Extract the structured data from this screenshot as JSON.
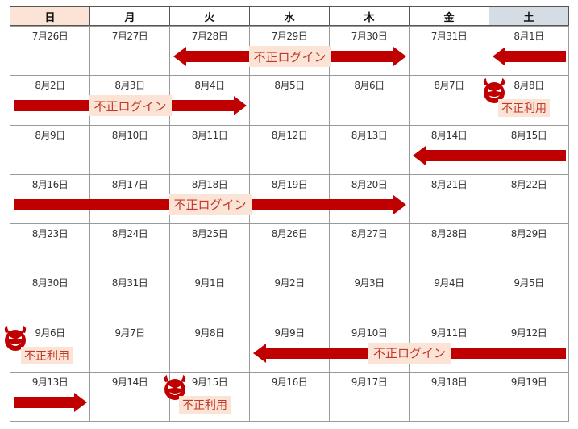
{
  "weekdays": [
    "日",
    "月",
    "火",
    "水",
    "木",
    "金",
    "土"
  ],
  "weekday_colors": [
    "#fbe3d6",
    "#ffffff",
    "#ffffff",
    "#ffffff",
    "#ffffff",
    "#ffffff",
    "#d6dce4"
  ],
  "weeks": [
    [
      "7月26日",
      "7月27日",
      "7月28日",
      "7月29日",
      "7月30日",
      "7月31日",
      "8月1日"
    ],
    [
      "8月2日",
      "8月3日",
      "8月4日",
      "8月5日",
      "8月6日",
      "8月7日",
      "8月8日"
    ],
    [
      "8月9日",
      "8月10日",
      "8月11日",
      "8月12日",
      "8月13日",
      "8月14日",
      "8月15日"
    ],
    [
      "8月16日",
      "8月17日",
      "8月18日",
      "8月19日",
      "8月20日",
      "8月21日",
      "8月22日"
    ],
    [
      "8月23日",
      "8月24日",
      "8月25日",
      "8月26日",
      "8月27日",
      "8月28日",
      "8月29日"
    ],
    [
      "8月30日",
      "8月31日",
      "9月1日",
      "9月2日",
      "9月3日",
      "9月4日",
      "9月5日"
    ],
    [
      "9月6日",
      "9月7日",
      "9月8日",
      "9月9日",
      "9月10日",
      "9月11日",
      "9月12日"
    ],
    [
      "9月13日",
      "9月14日",
      "9月15日",
      "9月16日",
      "9月17日",
      "9月18日",
      "9月19日"
    ]
  ],
  "accent_color": "#c00000",
  "arrows": [
    {
      "week": 0,
      "from": 2,
      "to": 4,
      "heads": "both",
      "label": "不正ログイン"
    },
    {
      "week": 0,
      "from": 6,
      "to": 6,
      "heads": "left",
      "label": ""
    },
    {
      "week": 1,
      "from": 0,
      "to": 2,
      "heads": "right",
      "label": "不正ログイン"
    },
    {
      "week": 2,
      "from": 5,
      "to": 6,
      "heads": "left",
      "label": ""
    },
    {
      "week": 3,
      "from": 0,
      "to": 4,
      "heads": "right",
      "label": "不正ログイン"
    },
    {
      "week": 6,
      "from": 3,
      "to": 6,
      "heads": "left",
      "label": "不正ログイン"
    },
    {
      "week": 7,
      "from": 0,
      "to": 0,
      "heads": "right",
      "label": ""
    }
  ],
  "fraud_marks": [
    {
      "week": 1,
      "day": 6,
      "icon": "devil-icon",
      "label": "不正利用"
    },
    {
      "week": 6,
      "day": 0,
      "icon": "devil-icon",
      "label": "不正利用"
    },
    {
      "week": 7,
      "day": 2,
      "icon": "devil-icon",
      "label": "不正利用"
    }
  ]
}
